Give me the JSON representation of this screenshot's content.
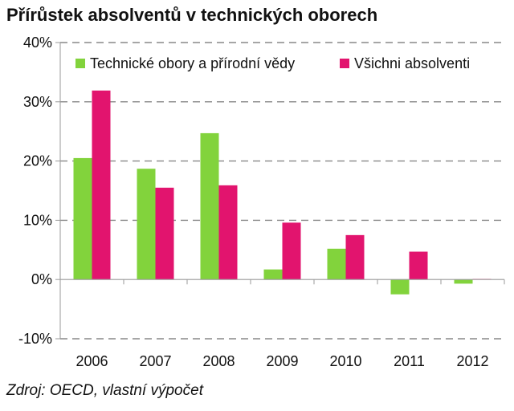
{
  "title": "Přírůstek absolventů v technických oborech",
  "source": "Zdroj: OECD, vlastní výpočet",
  "colors": {
    "technical": "#82d33c",
    "all": "#e2146e",
    "grid": "#888888",
    "axis": "#999999"
  },
  "chart_data": {
    "type": "bar",
    "title": "Přírůstek absolventů v technických oborech",
    "xlabel": "",
    "ylabel": "",
    "categories": [
      "2006",
      "2007",
      "2008",
      "2009",
      "2010",
      "2011",
      "2012"
    ],
    "series": [
      {
        "name": "Technické obory a přírodní vědy",
        "values": [
          20.5,
          18.7,
          24.7,
          1.7,
          5.2,
          -2.5,
          -0.7
        ]
      },
      {
        "name": "Všichni absolventi",
        "values": [
          31.9,
          15.5,
          15.9,
          9.6,
          7.5,
          4.7,
          0.1
        ]
      }
    ],
    "ylim": [
      -10,
      40
    ],
    "yticks": [
      40,
      30,
      20,
      10,
      0,
      -10
    ],
    "ytick_labels": [
      "40%",
      "30%",
      "20%",
      "10%",
      "0%",
      "-10%"
    ],
    "grid": true,
    "legend": "top"
  }
}
